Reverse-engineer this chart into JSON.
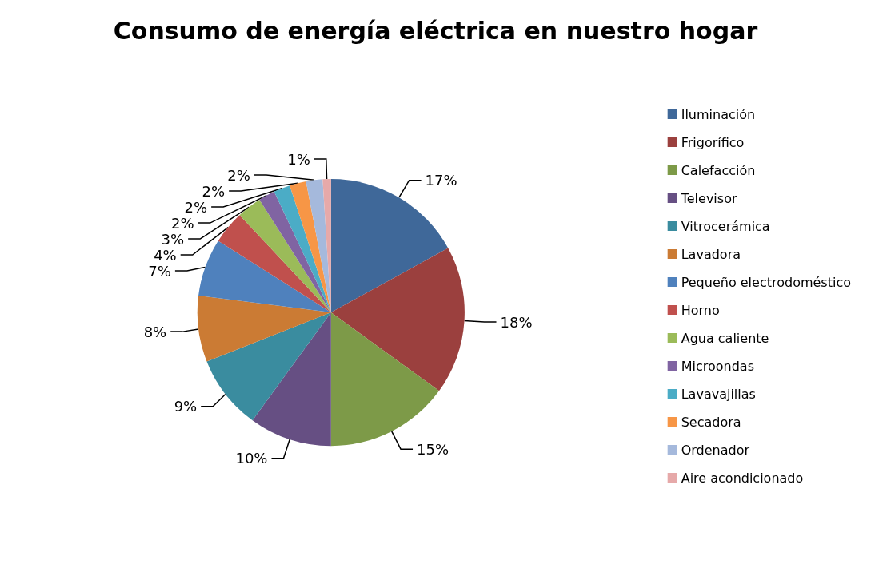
{
  "chart_data": {
    "type": "pie",
    "title": "Consumo de energía eléctrica en nuestro hogar",
    "categories": [
      "Iluminación",
      "Frigorífico",
      "Calefacción",
      "Televisor",
      "Vitrocerámica",
      "Lavadora",
      "Pequeño electrodoméstico",
      "Horno",
      "Agua caliente",
      "Microondas",
      "Lavavajillas",
      "Secadora",
      "Ordenador",
      "Aire acondicionado"
    ],
    "values": [
      17,
      18,
      15,
      10,
      9,
      8,
      7,
      4,
      3,
      2,
      2,
      2,
      2,
      1
    ],
    "value_labels": [
      "17%",
      "18%",
      "15%",
      "10%",
      "9%",
      "8%",
      "7%",
      "4%",
      "3%",
      "2%",
      "2%",
      "2%",
      "2%",
      "1%"
    ],
    "colors": [
      "#3f6899",
      "#9b403e",
      "#7d9a48",
      "#664f83",
      "#3a8c9f",
      "#cb7b34",
      "#4f81bd",
      "#c0504d",
      "#9bbb59",
      "#8064a2",
      "#4bacc6",
      "#f79646",
      "#a5b9dc",
      "#e6a9a9"
    ],
    "legend": "right"
  }
}
